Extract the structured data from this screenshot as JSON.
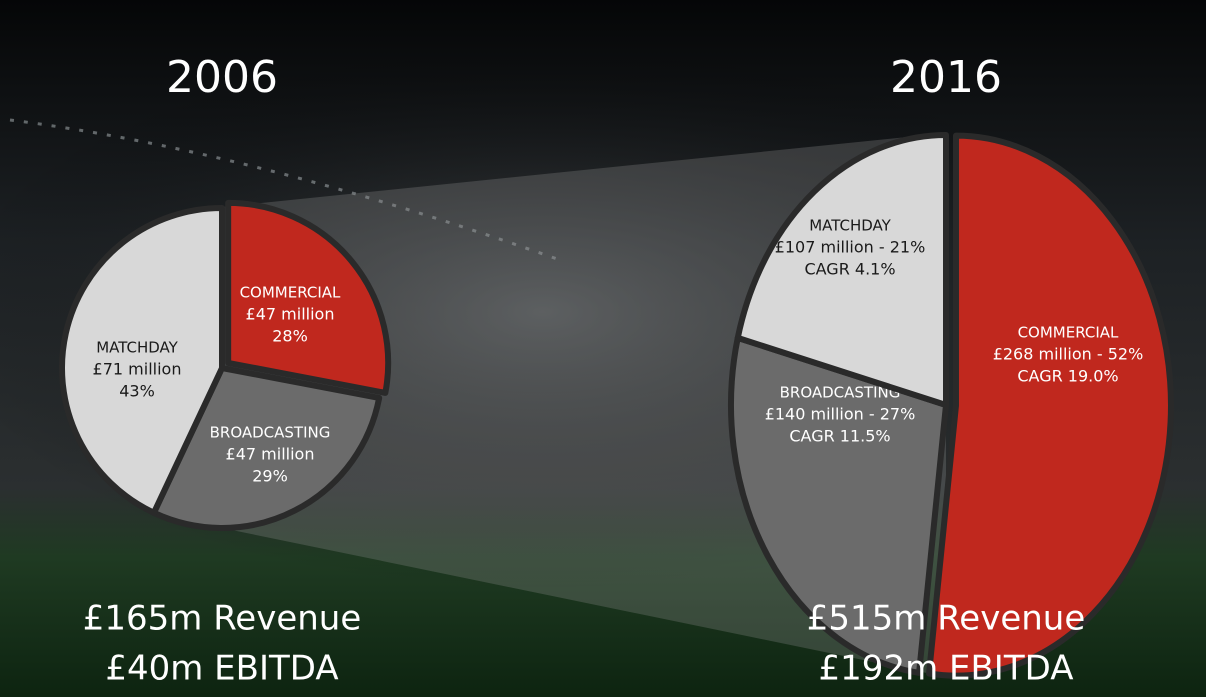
{
  "chart_data": [
    {
      "type": "pie",
      "title": "2006",
      "categories": [
        "COMMERCIAL",
        "BROADCASTING",
        "MATCHDAY"
      ],
      "values": [
        28,
        29,
        43
      ],
      "amounts": [
        "£47 million",
        "£47 million",
        "£71 million"
      ],
      "value_labels": [
        "28%",
        "29%",
        "43%"
      ],
      "colors": [
        "#c0281e",
        "#6b6b6b",
        "#d8d8d8"
      ],
      "notes": [
        "£165m Revenue",
        "£40m EBITDA"
      ]
    },
    {
      "type": "pie",
      "title": "2016",
      "categories": [
        "COMMERCIAL",
        "BROADCASTING",
        "MATCHDAY"
      ],
      "values": [
        52,
        27,
        21
      ],
      "value_labels": [
        "£268 million - 52%",
        "£140 million - 27%",
        "£107 million - 21%"
      ],
      "cagr": [
        "CAGR 19.0%",
        "CAGR 11.5%",
        "CAGR 4.1%"
      ],
      "colors": [
        "#c0281e",
        "#6b6b6b",
        "#d8d8d8"
      ],
      "notes": [
        "£515m Revenue",
        "£192m EBITDA"
      ]
    }
  ]
}
